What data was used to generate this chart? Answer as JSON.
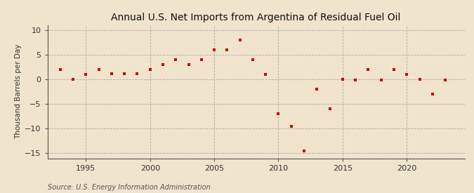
{
  "title": "Annual U.S. Net Imports from Argentina of Residual Fuel Oil",
  "ylabel": "Thousand Barrels per Day",
  "source": "Source: U.S. Energy Information Administration",
  "background_color": "#f0e4cc",
  "plot_bg_color": "#f0e4cc",
  "marker_color": "#cc0000",
  "years": [
    1993,
    1994,
    1995,
    1996,
    1997,
    1998,
    1999,
    2000,
    2001,
    2002,
    2003,
    2004,
    2005,
    2006,
    2007,
    2008,
    2009,
    2010,
    2011,
    2012,
    2013,
    2014,
    2015,
    2016,
    2017,
    2018,
    2019,
    2020,
    2021,
    2022,
    2023
  ],
  "values": [
    2.0,
    0.0,
    1.0,
    2.0,
    1.1,
    1.1,
    1.1,
    2.0,
    3.0,
    4.0,
    3.0,
    4.0,
    6.0,
    6.0,
    8.0,
    4.0,
    1.0,
    -7.0,
    -9.5,
    -14.5,
    -2.0,
    -6.0,
    0.0,
    -0.2,
    2.0,
    -0.2,
    2.0,
    1.0,
    0.0,
    -3.0,
    -0.2
  ],
  "ylim": [
    -16,
    11
  ],
  "xlim": [
    1992,
    2024.5
  ],
  "yticks": [
    -15,
    -10,
    -5,
    0,
    5,
    10
  ],
  "xticks": [
    1995,
    2000,
    2005,
    2010,
    2015,
    2020
  ],
  "grid_color": "#aaaaaa",
  "title_fontsize": 10,
  "label_fontsize": 7.5,
  "tick_fontsize": 8,
  "source_fontsize": 7
}
